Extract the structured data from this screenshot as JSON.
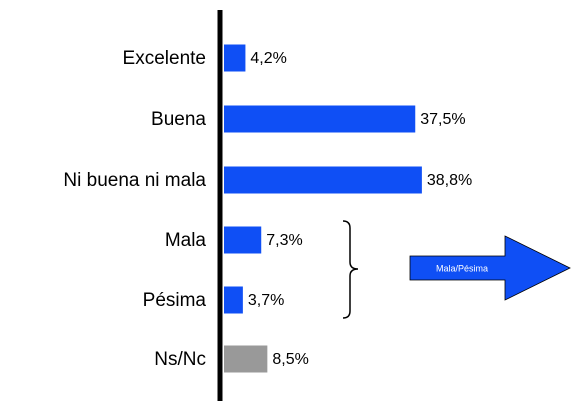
{
  "chart_data": {
    "type": "barh",
    "categories": [
      "Excelente",
      "Buena",
      "Ni buena ni mala",
      "Mala",
      "Pésima",
      "Ns/Nc"
    ],
    "values": [
      4.2,
      37.5,
      38.8,
      7.3,
      3.7,
      8.5
    ],
    "value_labels": [
      "4,2%",
      "37,5%",
      "38,8%",
      "7,3%",
      "3,7%",
      "8,5%"
    ],
    "colors": [
      "#0f4ff5",
      "#0f4ff5",
      "#0f4ff5",
      "#0f4ff5",
      "#0f4ff5",
      "#999999"
    ],
    "annotation": "Mala/Pésima"
  }
}
